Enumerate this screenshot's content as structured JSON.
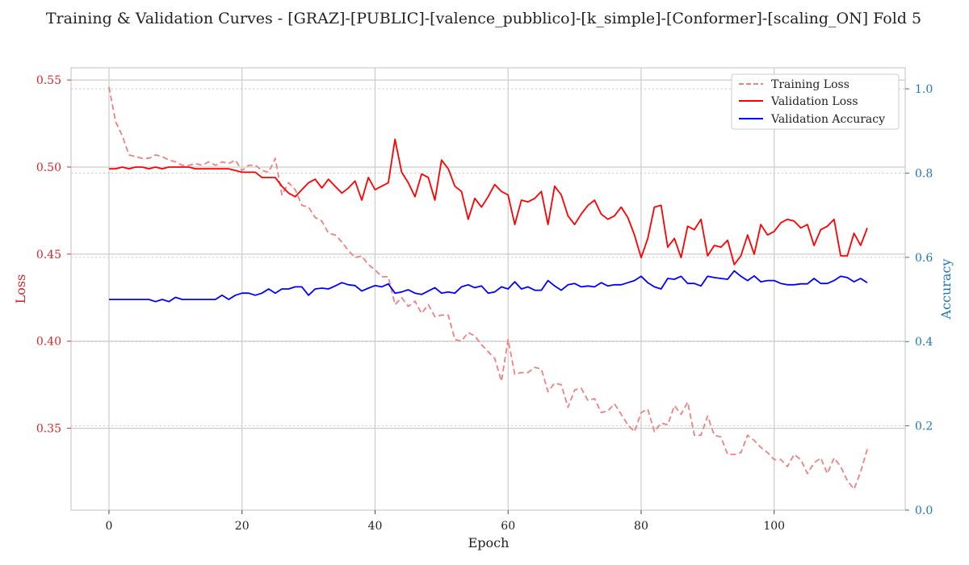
{
  "chart_data": {
    "type": "line",
    "title": "Training & Validation Curves - [GRAZ]-[PUBLIC]-[valence_pubblico]-[k_simple]-[Conformer]-[scaling_ON] Fold 5",
    "xlabel": "Epoch",
    "ylabel_left": "Loss",
    "ylabel_right": "Accuracy",
    "xlim": [
      -5.7,
      119.7
    ],
    "ylim_left": [
      0.303,
      0.557
    ],
    "ylim_right": [
      0.0,
      1.05
    ],
    "x_ticks": [
      0,
      20,
      40,
      60,
      80,
      100
    ],
    "y_left_ticks": [
      0.35,
      0.4,
      0.45,
      0.5,
      0.55
    ],
    "y_left_tick_labels": [
      "0.35",
      "0.40",
      "0.45",
      "0.50",
      "0.55"
    ],
    "y_right_ticks": [
      0.0,
      0.2,
      0.4,
      0.6,
      0.8,
      1.0
    ],
    "y_right_tick_labels": [
      "0.0",
      "0.2",
      "0.4",
      "0.6",
      "0.8",
      "1.0"
    ],
    "grid": true,
    "legend_position": "top-right",
    "colors": {
      "training_loss": "#f08080",
      "validation_loss": "#ff0000",
      "validation_accuracy": "#0000ff",
      "left_axis": "#d62728",
      "right_axis": "#1f77b4"
    },
    "series": [
      {
        "name": "Training Loss",
        "axis": "left",
        "style": "dashed",
        "values": [
          0.546,
          0.526,
          0.518,
          0.507,
          0.506,
          0.505,
          0.505,
          0.507,
          0.506,
          0.504,
          0.503,
          0.501,
          0.501,
          0.502,
          0.501,
          0.503,
          0.501,
          0.503,
          0.502,
          0.504,
          0.498,
          0.501,
          0.501,
          0.498,
          0.497,
          0.505,
          0.484,
          0.491,
          0.487,
          0.478,
          0.477,
          0.471,
          0.469,
          0.462,
          0.461,
          0.457,
          0.452,
          0.448,
          0.449,
          0.444,
          0.441,
          0.437,
          0.437,
          0.421,
          0.425,
          0.42,
          0.423,
          0.416,
          0.421,
          0.414,
          0.415,
          0.415,
          0.401,
          0.4,
          0.405,
          0.403,
          0.398,
          0.394,
          0.39,
          0.377,
          0.401,
          0.381,
          0.382,
          0.382,
          0.385,
          0.384,
          0.371,
          0.376,
          0.375,
          0.362,
          0.372,
          0.373,
          0.366,
          0.367,
          0.359,
          0.36,
          0.364,
          0.358,
          0.352,
          0.348,
          0.359,
          0.361,
          0.348,
          0.353,
          0.352,
          0.363,
          0.358,
          0.365,
          0.346,
          0.346,
          0.357,
          0.346,
          0.345,
          0.335,
          0.335,
          0.336,
          0.346,
          0.343,
          0.339,
          0.336,
          0.332,
          0.332,
          0.328,
          0.335,
          0.332,
          0.324,
          0.33,
          0.333,
          0.324,
          0.333,
          0.328,
          0.32,
          0.315,
          0.325,
          0.338
        ]
      },
      {
        "name": "Validation Loss",
        "axis": "left",
        "style": "solid",
        "values": [
          0.499,
          0.499,
          0.5,
          0.499,
          0.5,
          0.5,
          0.499,
          0.5,
          0.499,
          0.5,
          0.5,
          0.5,
          0.5,
          0.499,
          0.499,
          0.499,
          0.499,
          0.499,
          0.499,
          0.498,
          0.497,
          0.497,
          0.497,
          0.494,
          0.494,
          0.494,
          0.489,
          0.485,
          0.483,
          0.487,
          0.491,
          0.493,
          0.488,
          0.493,
          0.489,
          0.485,
          0.488,
          0.492,
          0.481,
          0.494,
          0.487,
          0.489,
          0.491,
          0.516,
          0.497,
          0.491,
          0.483,
          0.496,
          0.494,
          0.481,
          0.504,
          0.499,
          0.489,
          0.486,
          0.47,
          0.482,
          0.477,
          0.483,
          0.49,
          0.486,
          0.484,
          0.467,
          0.481,
          0.48,
          0.482,
          0.486,
          0.467,
          0.489,
          0.484,
          0.472,
          0.467,
          0.473,
          0.478,
          0.481,
          0.473,
          0.47,
          0.472,
          0.477,
          0.471,
          0.461,
          0.448,
          0.459,
          0.477,
          0.478,
          0.454,
          0.459,
          0.448,
          0.466,
          0.464,
          0.47,
          0.449,
          0.455,
          0.454,
          0.458,
          0.444,
          0.449,
          0.461,
          0.45,
          0.467,
          0.461,
          0.463,
          0.468,
          0.47,
          0.469,
          0.465,
          0.467,
          0.455,
          0.464,
          0.466,
          0.47,
          0.449,
          0.449,
          0.462,
          0.455,
          0.465
        ]
      },
      {
        "name": "Validation Accuracy",
        "axis": "right",
        "style": "solid",
        "values": [
          0.5,
          0.5,
          0.5,
          0.5,
          0.5,
          0.5,
          0.5,
          0.495,
          0.5,
          0.495,
          0.505,
          0.5,
          0.5,
          0.5,
          0.5,
          0.5,
          0.5,
          0.51,
          0.5,
          0.51,
          0.515,
          0.515,
          0.51,
          0.515,
          0.525,
          0.515,
          0.525,
          0.525,
          0.53,
          0.53,
          0.51,
          0.525,
          0.527,
          0.525,
          0.532,
          0.54,
          0.535,
          0.533,
          0.52,
          0.527,
          0.533,
          0.53,
          0.537,
          0.515,
          0.518,
          0.523,
          0.515,
          0.512,
          0.52,
          0.528,
          0.515,
          0.518,
          0.515,
          0.53,
          0.535,
          0.528,
          0.532,
          0.515,
          0.518,
          0.53,
          0.525,
          0.542,
          0.525,
          0.53,
          0.522,
          0.522,
          0.545,
          0.532,
          0.522,
          0.535,
          0.538,
          0.53,
          0.532,
          0.53,
          0.54,
          0.532,
          0.535,
          0.535,
          0.54,
          0.545,
          0.555,
          0.54,
          0.53,
          0.525,
          0.55,
          0.548,
          0.555,
          0.538,
          0.538,
          0.532,
          0.555,
          0.552,
          0.55,
          0.548,
          0.568,
          0.555,
          0.545,
          0.556,
          0.542,
          0.545,
          0.545,
          0.538,
          0.535,
          0.535,
          0.537,
          0.537,
          0.55,
          0.538,
          0.538,
          0.545,
          0.555,
          0.552,
          0.542,
          0.55,
          0.54
        ]
      }
    ]
  }
}
